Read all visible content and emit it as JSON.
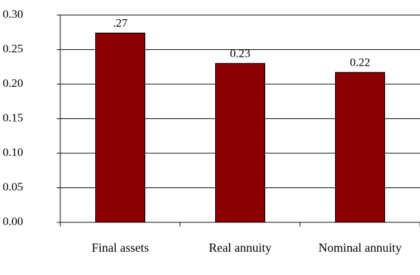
{
  "chart_data": {
    "type": "bar",
    "categories": [
      "Final assets",
      "Real annuity",
      "Nominal annuity"
    ],
    "values": [
      0.274,
      0.23,
      0.217
    ],
    "value_labels": [
      ".27",
      "0.23",
      "0.22"
    ],
    "color": "#8b0000",
    "ylim": [
      0,
      0.3
    ],
    "yticks": [
      {
        "value": 0,
        "label": "0.00"
      },
      0.05,
      {
        "value": 0.1,
        "label": "0.10"
      },
      0.15,
      {
        "value": 0.2,
        "label": "0.20"
      },
      0.25,
      {
        "value": 0.3,
        "label": "0.30"
      }
    ],
    "grid": true
  }
}
